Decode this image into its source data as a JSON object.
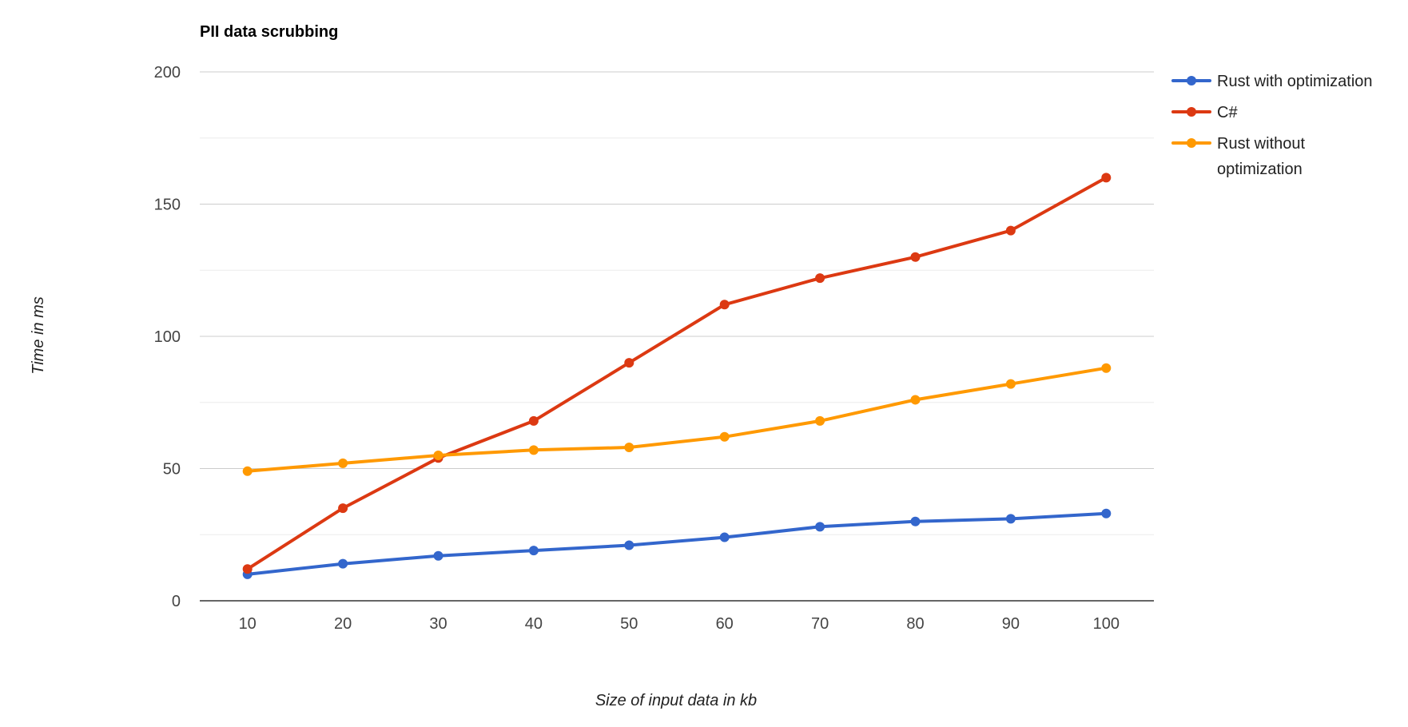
{
  "chart_data": {
    "type": "line",
    "title": "PII data scrubbing",
    "xlabel": "Size of input data in kb",
    "ylabel": "Time in ms",
    "x": [
      10,
      20,
      30,
      40,
      50,
      60,
      70,
      80,
      90,
      100
    ],
    "x_tick_labels": [
      "10",
      "20",
      "30",
      "40",
      "50",
      "60",
      "70",
      "80",
      "90",
      "100"
    ],
    "ylim": [
      0,
      200
    ],
    "y_ticks": [
      0,
      50,
      100,
      150,
      200
    ],
    "y_tick_labels": [
      "0",
      "50",
      "100",
      "150",
      "200"
    ],
    "grid": true,
    "legend_position": "right",
    "series": [
      {
        "name": "Rust with optimization",
        "color": "#3366cc",
        "values": [
          10,
          14,
          17,
          19,
          21,
          24,
          28,
          30,
          31,
          33
        ]
      },
      {
        "name": "C#",
        "color": "#dc3912",
        "values": [
          12,
          35,
          54,
          68,
          90,
          112,
          122,
          130,
          140,
          160
        ]
      },
      {
        "name": "Rust without optimization",
        "legend_lines": [
          "Rust without",
          "optimization"
        ],
        "color": "#ff9900",
        "values": [
          49,
          52,
          55,
          57,
          58,
          62,
          68,
          76,
          82,
          88
        ]
      }
    ]
  }
}
